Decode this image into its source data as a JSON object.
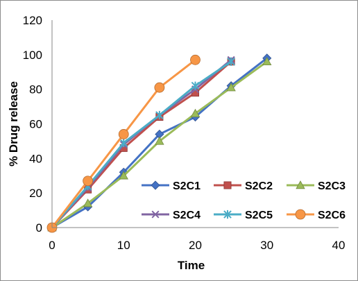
{
  "chart_data": {
    "type": "line",
    "xlabel": "Time",
    "ylabel": "% Drug release",
    "xlim": [
      0,
      40
    ],
    "ylim": [
      0,
      120
    ],
    "xticks": [
      "0",
      "10",
      "20",
      "30",
      "40"
    ],
    "yticks": [
      "0",
      "20",
      "40",
      "60",
      "80",
      "100",
      "120"
    ],
    "grid": false,
    "legend_position": "bottom-right",
    "series": [
      {
        "name": "S2C1",
        "color": "#4472C4",
        "marker": "diamond",
        "x": [
          0,
          5,
          10,
          15,
          20,
          25,
          30
        ],
        "y": [
          0,
          12,
          32,
          54,
          64,
          82,
          98
        ]
      },
      {
        "name": "S2C2",
        "color": "#C0504D",
        "marker": "square",
        "x": [
          0,
          5,
          10,
          15,
          20,
          25
        ],
        "y": [
          0,
          22,
          46,
          64,
          78,
          96
        ]
      },
      {
        "name": "S2C3",
        "color": "#9BBB59",
        "marker": "triangle",
        "x": [
          0,
          5,
          10,
          15,
          20,
          25,
          30
        ],
        "y": [
          0,
          14,
          30,
          50,
          66,
          81,
          96
        ]
      },
      {
        "name": "S2C4",
        "color": "#8064A2",
        "marker": "x",
        "x": [
          0,
          5,
          10,
          15,
          20,
          25
        ],
        "y": [
          0,
          23,
          48,
          65,
          80,
          97
        ]
      },
      {
        "name": "S2C5",
        "color": "#4BACC6",
        "marker": "star",
        "x": [
          0,
          5,
          10,
          15,
          20,
          25
        ],
        "y": [
          0,
          24,
          49,
          65,
          82,
          96
        ]
      },
      {
        "name": "S2C6",
        "color": "#F79646",
        "marker": "circle",
        "x": [
          0,
          5,
          10,
          15,
          20
        ],
        "y": [
          0,
          27,
          54,
          81,
          97
        ]
      }
    ]
  }
}
